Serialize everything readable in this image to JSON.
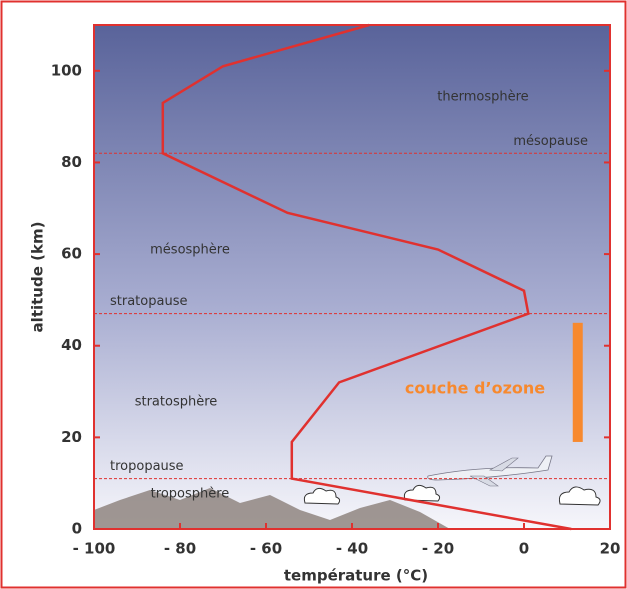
{
  "chart_data": {
    "type": "line",
    "x_label": "température (°C)",
    "y_label": "altitude (km)",
    "x": [
      11,
      -54,
      -54,
      -43,
      1,
      0,
      -20,
      -55,
      -84,
      -84,
      -70,
      -36
    ],
    "values": [
      0,
      11,
      19,
      32,
      47,
      52,
      61,
      69,
      82,
      93,
      101,
      110
    ],
    "color": "#e0312f",
    "xlim": [
      -100,
      20
    ],
    "ylim": [
      0,
      110
    ],
    "xticks": [
      {
        "value": -100,
        "label": "- 100"
      },
      {
        "value": -80,
        "label": "- 80"
      },
      {
        "value": -60,
        "label": "- 60"
      },
      {
        "value": -40,
        "label": "- 40"
      },
      {
        "value": -20,
        "label": "- 20"
      },
      0,
      20
    ],
    "yticks": [
      0,
      20,
      40,
      60,
      80,
      100
    ],
    "reference_lines": [
      {
        "label": "tropopause",
        "value": 11
      },
      {
        "label": "stratopause",
        "value": 47
      },
      {
        "label": "mésopause",
        "value": 82
      }
    ],
    "layers": [
      "thermosphère",
      "mésosphère",
      "stratosphère",
      "troposphère"
    ],
    "ozone": {
      "label": "couche d’ozone",
      "x": 12.5,
      "range": [
        19,
        45
      ],
      "color": "#f7892e"
    }
  }
}
